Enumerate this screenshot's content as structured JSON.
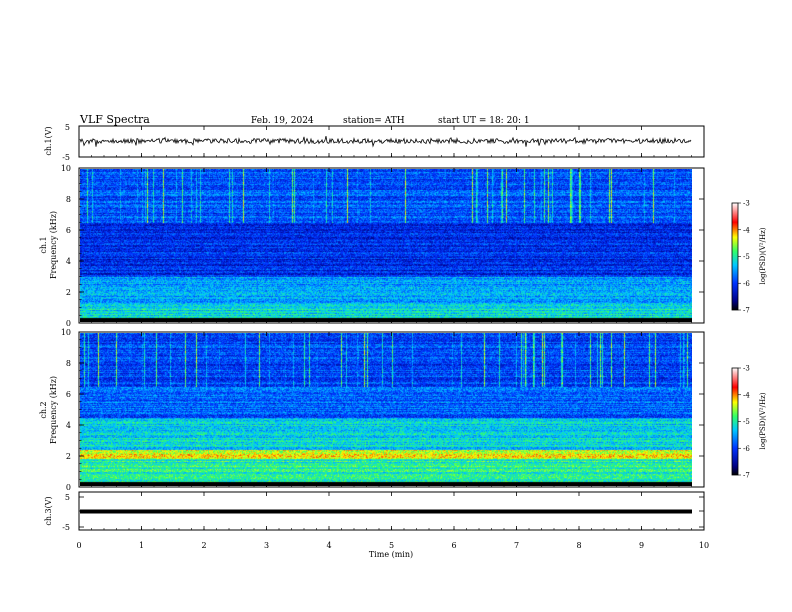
{
  "header": {
    "title": "VLF  Spectra",
    "date": "Feb. 19, 2024",
    "station": "station= ATH",
    "start": "start  UT  =    18: 20: 1"
  },
  "chart_data": {
    "type": "heatmap",
    "x": {
      "label": "Time  (min)",
      "range": [
        0,
        10
      ],
      "ticks": [
        0,
        1,
        2,
        3,
        4,
        5,
        6,
        7,
        8,
        9,
        10
      ],
      "data_end": 9.8
    },
    "panels": [
      {
        "id": "ch1-waveform",
        "type": "line",
        "ylabel": "ch.1(V)",
        "ylim": [
          -5,
          5
        ],
        "ticks": [
          -5,
          5
        ],
        "trace": "noisy waveform near 0 V with spikes"
      },
      {
        "id": "ch1-spectrogram",
        "type": "heatmap",
        "ylabel_line1": "ch.1",
        "ylabel_line2": "Frequency  (kHz)",
        "ylim": [
          0,
          10
        ],
        "ticks": [
          0,
          2,
          4,
          6,
          8,
          10
        ],
        "colorbar": {
          "label": "log(PSD)(V²/Hz)",
          "range": [
            -7,
            -3
          ],
          "ticks": [
            -3,
            -4,
            -5,
            -6,
            -7
          ]
        }
      },
      {
        "id": "ch2-spectrogram",
        "type": "heatmap",
        "ylabel_line1": "ch.2",
        "ylabel_line2": "Frequency  (kHz)",
        "ylim": [
          0,
          10
        ],
        "ticks": [
          0,
          2,
          4,
          6,
          8,
          10
        ],
        "colorbar": {
          "label": "log(PSD)(V²/Hz)",
          "range": [
            -7,
            -3
          ],
          "ticks": [
            -3,
            -4,
            -5,
            -6,
            -7
          ]
        }
      },
      {
        "id": "ch3-waveform",
        "type": "line",
        "ylabel": "ch.3(V)",
        "ylim": [
          -5,
          5
        ],
        "ticks": [
          5,
          0,
          -5
        ],
        "trace": "flat line near -2 V"
      }
    ]
  }
}
